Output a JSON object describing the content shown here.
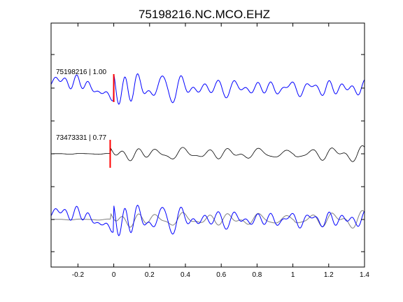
{
  "chart_data": {
    "type": "line",
    "title": "75198216.NC.MCO.EHZ",
    "xlabel": "",
    "ylabel": "",
    "xlim": [
      -0.35,
      1.4
    ],
    "x_ticks": [
      "-0.2",
      "0",
      "0.2",
      "0.4",
      "0.6",
      "0.8",
      "1",
      "1.2",
      "1.4"
    ],
    "grid": false,
    "traces": [
      {
        "label": "75198216 | 1.00",
        "event_id": "75198216",
        "correlation": 1.0,
        "pick_time": 0.0,
        "color": "#0000ff"
      },
      {
        "label": "73473331 | 0.77",
        "event_id": "73473331",
        "correlation": 0.77,
        "pick_time": -0.02,
        "color": "#000000"
      },
      {
        "label": "",
        "overlay_of": [
          "75198216",
          "73473331"
        ],
        "colors": [
          "#0000ff",
          "#808080"
        ]
      }
    ],
    "pick_color": "#ff0000"
  }
}
